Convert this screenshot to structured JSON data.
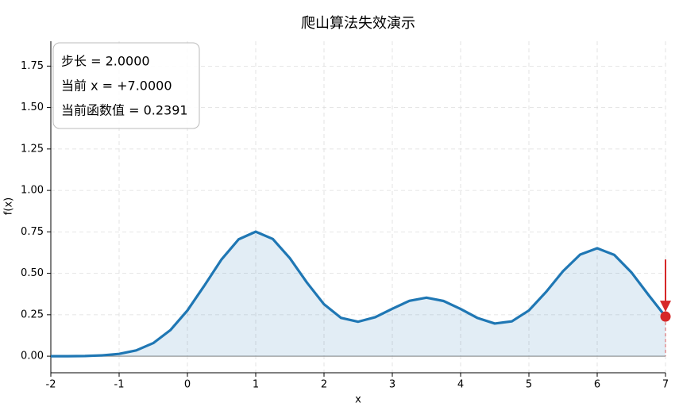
{
  "chart_data": {
    "type": "line",
    "title": "爬山算法失效演示",
    "x_label": "x",
    "y_label": "f(x)",
    "x": [
      -2,
      -1.75,
      -1.5,
      -1.25,
      -1,
      -0.75,
      -0.5,
      -0.25,
      0,
      0.25,
      0.5,
      0.75,
      1,
      1.25,
      1.5,
      1.75,
      2,
      2.25,
      2.5,
      2.75,
      3,
      3.25,
      3.5,
      3.75,
      4,
      4.25,
      4.5,
      4.75,
      5,
      5.25,
      5.5,
      5.75,
      6,
      6.25,
      6.5,
      6.75,
      7
    ],
    "series": [
      {
        "color": "#1f77b4",
        "values": [
          0.0,
          0.0,
          0.001,
          0.005,
          0.014,
          0.035,
          0.079,
          0.157,
          0.276,
          0.427,
          0.584,
          0.705,
          0.751,
          0.707,
          0.591,
          0.444,
          0.313,
          0.231,
          0.208,
          0.235,
          0.286,
          0.334,
          0.353,
          0.333,
          0.285,
          0.23,
          0.197,
          0.21,
          0.276,
          0.387,
          0.513,
          0.613,
          0.651,
          0.611,
          0.506,
          0.37,
          0.239
        ]
      }
    ],
    "marker": {
      "x": 7,
      "y": 0.2391,
      "color": "#d62728"
    },
    "annotations": [
      "步长 = 2.0000",
      "当前 x = +7.0000",
      "当前函数值 = 0.2391"
    ],
    "xlim": [
      -2,
      7
    ],
    "ylim": [
      -0.1,
      1.9
    ],
    "xticks": [
      -2,
      -1,
      0,
      1,
      2,
      3,
      4,
      5,
      6,
      7
    ],
    "yticks": [
      {
        "value": 0,
        "label": "0.00"
      },
      {
        "value": 0.25,
        "label": "0.25"
      },
      {
        "value": 0.5,
        "label": "0.50"
      },
      {
        "value": 0.75,
        "label": "0.75"
      },
      {
        "value": 1,
        "label": "1.00"
      },
      {
        "value": 1.25,
        "label": "1.25"
      },
      {
        "value": 1.5,
        "label": "1.50"
      },
      {
        "value": 1.75,
        "label": "1.75"
      }
    ],
    "grid": true
  }
}
